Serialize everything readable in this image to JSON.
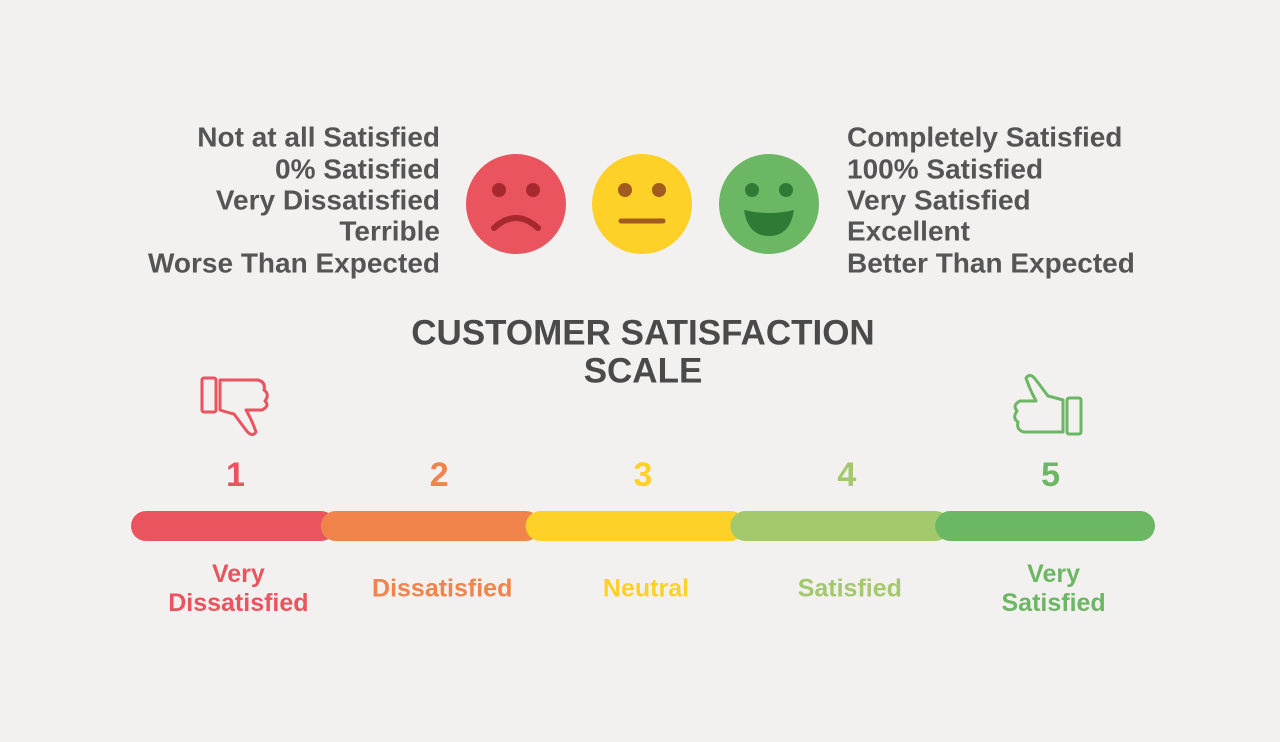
{
  "left_lines": [
    "Not at all Satisfied",
    "0% Satisfied",
    "Very Dissatisfied",
    "Terrible",
    "Worse Than Expected"
  ],
  "right_lines": [
    "Completely Satisfied",
    "100% Satisfied",
    "Very Satisfied",
    "Excellent",
    "Better Than Expected"
  ],
  "title_lines": [
    "CUSTOMER SATISFACTION",
    "SCALE"
  ],
  "scale": [
    {
      "number": 1,
      "label_lines": [
        "Very",
        "Dissatisfied"
      ],
      "color": "#e9545f"
    },
    {
      "number": 2,
      "label_lines": [
        "Dissatisfied"
      ],
      "color": "#f0844a"
    },
    {
      "number": 3,
      "label_lines": [
        "Neutral"
      ],
      "color": "#fdd128"
    },
    {
      "number": 4,
      "label_lines": [
        "Satisfied"
      ],
      "color": "#a4c96c"
    },
    {
      "number": 5,
      "label_lines": [
        "Very",
        "Satisfied"
      ],
      "color": "#6cb764"
    }
  ]
}
